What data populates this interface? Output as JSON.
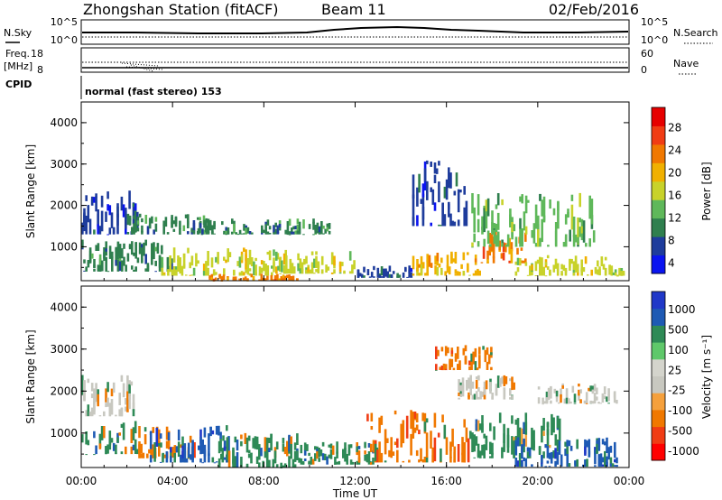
{
  "header": {
    "title": "Zhongshan Station (fitACF)",
    "beam": "Beam 11",
    "date": "02/Feb/2016"
  },
  "strips": {
    "nsky_label": "N.Sky",
    "nsearch_label": "N.Search",
    "noise_ticks": [
      "10^5",
      "10^0"
    ],
    "freq_label": "Freq.",
    "freq_unit": "[MHz]",
    "freq_ticks": [
      "18",
      "8"
    ],
    "nave_label": "Nave",
    "nave_ticks": [
      "60",
      "0"
    ],
    "cpid_label": "CPID",
    "cpid_value": "normal (fast stereo) 153"
  },
  "colors": {
    "power": [
      "#0a14f0",
      "#1e3c9c",
      "#2f7f4e",
      "#5fb85a",
      "#c8d22a",
      "#f0b000",
      "#f07800",
      "#f03c14",
      "#e60000"
    ],
    "velocity": [
      "#ff0000",
      "#f03c14",
      "#f07800",
      "#f5a03c",
      "#c8c8c0",
      "#d4d4cc",
      "#5fc86a",
      "#2e8a56",
      "#1e5ab4",
      "#2038c8"
    ]
  },
  "chart_data": [
    {
      "type": "heatmap",
      "title": "",
      "xlabel": "Time UT",
      "ylabel": "Slant Range [km]",
      "colorbar_label": "Power [dB]",
      "colorbar_ticks": [
        "28",
        "24",
        "20",
        "16",
        "12",
        "8",
        "4"
      ],
      "xlim": [
        0,
        24
      ],
      "ylim": [
        180,
        4500
      ],
      "x_ticks": [
        "00:00",
        "04:00",
        "08:00",
        "12:00",
        "16:00",
        "20:00",
        "00:00"
      ],
      "y_ticks": [
        "1000",
        "2000",
        "3000",
        "4000"
      ],
      "grid": false,
      "regions": [
        {
          "t": [
            0.0,
            2.5
          ],
          "r": [
            1300,
            2400
          ],
          "v": 6
        },
        {
          "t": [
            0.0,
            4.0
          ],
          "r": [
            400,
            1200
          ],
          "v": 10
        },
        {
          "t": [
            2.0,
            5.5
          ],
          "r": [
            1300,
            1800
          ],
          "v": 9
        },
        {
          "t": [
            3.5,
            9.0
          ],
          "r": [
            300,
            1000
          ],
          "v": 20
        },
        {
          "t": [
            5.5,
            9.5
          ],
          "r": [
            180,
            350
          ],
          "v": 28
        },
        {
          "t": [
            5.0,
            11.0
          ],
          "r": [
            1300,
            1700
          ],
          "v": 9
        },
        {
          "t": [
            8.5,
            12.0
          ],
          "r": [
            350,
            900
          ],
          "v": 18
        },
        {
          "t": [
            12.0,
            14.5
          ],
          "r": [
            250,
            550
          ],
          "v": 8
        },
        {
          "t": [
            14.5,
            17.5
          ],
          "r": [
            300,
            900
          ],
          "v": 22
        },
        {
          "t": [
            14.5,
            17.0
          ],
          "r": [
            1500,
            3100
          ],
          "v": 8
        },
        {
          "t": [
            17.5,
            19.5
          ],
          "r": [
            600,
            1400
          ],
          "v": 26
        },
        {
          "t": [
            17.0,
            22.5
          ],
          "r": [
            1000,
            2300
          ],
          "v": 14
        },
        {
          "t": [
            19.0,
            23.8
          ],
          "r": [
            300,
            800
          ],
          "v": 18
        }
      ]
    },
    {
      "type": "heatmap",
      "title": "",
      "xlabel": "Time UT",
      "ylabel": "Slant Range [km]",
      "colorbar_label": "Velocity [m s⁻¹]",
      "colorbar_ticks": [
        "1000",
        "500",
        "100",
        "25",
        "-25",
        "-100",
        "-500",
        "-1000"
      ],
      "xlim": [
        0,
        24
      ],
      "ylim": [
        180,
        4500
      ],
      "x_ticks": [
        "00:00",
        "04:00",
        "08:00",
        "12:00",
        "16:00",
        "20:00",
        "00:00"
      ],
      "y_ticks": [
        "1000",
        "2000",
        "3000",
        "4000"
      ],
      "grid": false,
      "regions": [
        {
          "t": [
            0.0,
            2.5
          ],
          "r": [
            1400,
            2400
          ],
          "v": 0
        },
        {
          "t": [
            0.0,
            2.5
          ],
          "r": [
            500,
            1300
          ],
          "v": 200
        },
        {
          "t": [
            2.5,
            5.0
          ],
          "r": [
            400,
            1200
          ],
          "v": -150
        },
        {
          "t": [
            3.0,
            6.5
          ],
          "r": [
            300,
            1200
          ],
          "v": 700
        },
        {
          "t": [
            6.0,
            9.5
          ],
          "r": [
            180,
            1000
          ],
          "v": 300
        },
        {
          "t": [
            9.5,
            13.0
          ],
          "r": [
            250,
            800
          ],
          "v": 250
        },
        {
          "t": [
            12.5,
            17.0
          ],
          "r": [
            300,
            1600
          ],
          "v": -200
        },
        {
          "t": [
            15.5,
            18.0
          ],
          "r": [
            2500,
            3100
          ],
          "v": -150
        },
        {
          "t": [
            16.5,
            19.0
          ],
          "r": [
            1800,
            2400
          ],
          "v": 0
        },
        {
          "t": [
            17.0,
            21.0
          ],
          "r": [
            400,
            1500
          ],
          "v": 350
        },
        {
          "t": [
            19.0,
            23.5
          ],
          "r": [
            200,
            900
          ],
          "v": 800
        },
        {
          "t": [
            20.0,
            23.5
          ],
          "r": [
            1700,
            2200
          ],
          "v": 0
        }
      ]
    }
  ]
}
